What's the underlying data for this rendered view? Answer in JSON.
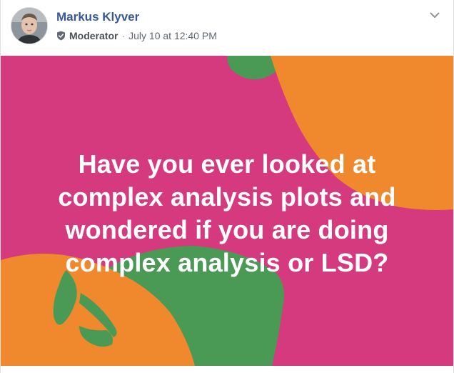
{
  "post": {
    "author": {
      "name": "Markus Klyver",
      "avatar_icon": "avatar-photo"
    },
    "role_badge_icon": "shield-check-icon",
    "role": "Moderator",
    "separator": "·",
    "timestamp": "July 10 at 12:40 PM",
    "menu_icon": "chevron-down-icon",
    "text_lines": [
      "Have you ever looked at",
      "complex analysis plots and",
      "wondered if you are doing",
      "complex analysis or LSD?"
    ],
    "colors": {
      "background": "#d63a7e",
      "orange": "#f0882e",
      "green": "#4a9a55",
      "text": "#ffffff",
      "author_link": "#365899"
    }
  }
}
